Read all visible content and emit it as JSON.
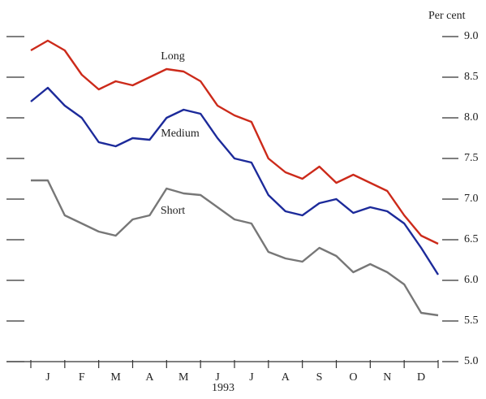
{
  "chart_data": {
    "type": "line",
    "y_label": "Per cent",
    "x_label": "1993",
    "x": [
      0,
      0.5,
      1,
      1.5,
      2,
      2.5,
      3,
      3.5,
      4,
      4.5,
      5,
      5.5,
      6,
      6.5,
      7,
      7.5,
      8,
      8.5,
      9,
      9.5,
      10,
      10.5,
      11,
      11.5,
      12
    ],
    "xlim": [
      0,
      12
    ],
    "xticks": [
      {
        "value": 0.5,
        "label": "J"
      },
      {
        "value": 1.5,
        "label": "F"
      },
      {
        "value": 2.5,
        "label": "M"
      },
      {
        "value": 3.5,
        "label": "A"
      },
      {
        "value": 4.5,
        "label": "M"
      },
      {
        "value": 5.5,
        "label": "J"
      },
      {
        "value": 6.5,
        "label": "J"
      },
      {
        "value": 7.5,
        "label": "A"
      },
      {
        "value": 8.5,
        "label": "S"
      },
      {
        "value": 9.5,
        "label": "O"
      },
      {
        "value": 10.5,
        "label": "N"
      },
      {
        "value": 11.5,
        "label": "D"
      }
    ],
    "xminorticks": [
      0,
      1,
      2,
      3,
      4,
      5,
      6,
      7,
      8,
      9,
      10,
      11,
      12
    ],
    "ylim": [
      5.0,
      9.0
    ],
    "yticks": [
      {
        "value": 5.0,
        "label": "5.0"
      },
      {
        "value": 5.5,
        "label": "5.5"
      },
      {
        "value": 6.0,
        "label": "6.0"
      },
      {
        "value": 6.5,
        "label": "6.5"
      },
      {
        "value": 7.0,
        "label": "7.0"
      },
      {
        "value": 7.5,
        "label": "7.5"
      },
      {
        "value": 8.0,
        "label": "8.0"
      },
      {
        "value": 8.5,
        "label": "8.5"
      },
      {
        "value": 9.0,
        "label": "9.0"
      }
    ],
    "series": [
      {
        "name": "Long",
        "color": "#cc2a1a",
        "values": [
          8.83,
          8.95,
          8.83,
          8.53,
          8.35,
          8.45,
          8.4,
          8.5,
          8.6,
          8.57,
          8.45,
          8.15,
          8.03,
          7.95,
          7.5,
          7.33,
          7.25,
          7.4,
          7.2,
          7.3,
          7.2,
          7.1,
          6.8,
          6.55,
          6.45
        ]
      },
      {
        "name": "Medium",
        "color": "#1c2a9a",
        "values": [
          8.2,
          8.37,
          8.15,
          8.0,
          7.7,
          7.65,
          7.75,
          7.73,
          8.0,
          8.1,
          8.05,
          7.75,
          7.5,
          7.45,
          7.05,
          6.85,
          6.8,
          6.95,
          7.0,
          6.83,
          6.9,
          6.85,
          6.7,
          6.4,
          6.07
        ]
      },
      {
        "name": "Short",
        "color": "#777777",
        "values": [
          7.23,
          7.23,
          6.8,
          6.7,
          6.6,
          6.55,
          6.75,
          6.8,
          7.13,
          7.07,
          7.05,
          6.9,
          6.75,
          6.7,
          6.35,
          6.27,
          6.23,
          6.4,
          6.3,
          6.1,
          6.2,
          6.1,
          5.95,
          5.6,
          5.57
        ]
      }
    ]
  }
}
